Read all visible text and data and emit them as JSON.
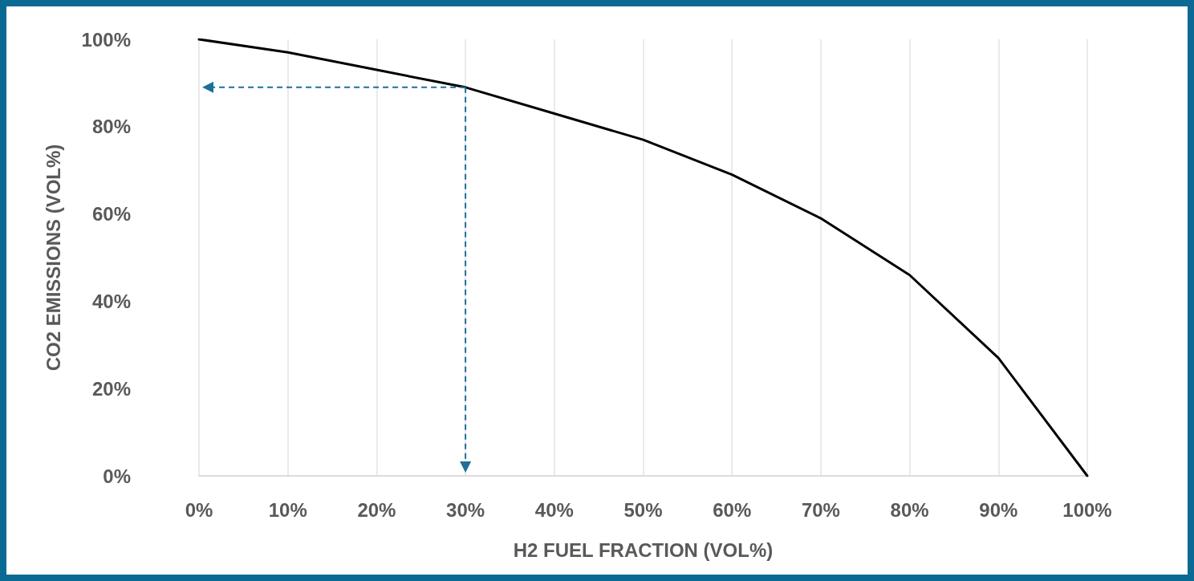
{
  "chart_data": {
    "type": "line",
    "xlabel": "H2 FUEL FRACTION (VOL%)",
    "ylabel": "CO2 EMISSIONS (VOL%)",
    "categories": [
      "0%",
      "10%",
      "20%",
      "30%",
      "40%",
      "50%",
      "60%",
      "70%",
      "80%",
      "90%",
      "100%"
    ],
    "series": [
      {
        "color": "#000000",
        "values": [
          100,
          97,
          93,
          89,
          83,
          77,
          69,
          59,
          46,
          27,
          0
        ]
      }
    ],
    "ylim": [
      0,
      100
    ],
    "yticks": [
      {
        "value": 0,
        "label": "0%"
      },
      {
        "value": 20,
        "label": "20%"
      },
      {
        "value": 40,
        "label": "40%"
      },
      {
        "value": 60,
        "label": "60%"
      },
      {
        "value": 80,
        "label": "80%"
      },
      {
        "value": 100,
        "label": "100%"
      }
    ],
    "ref_lines": [
      {
        "axis": "x",
        "value": "30%",
        "color": "#1f6f98",
        "line_style": "dashed"
      },
      {
        "axis": "y",
        "value": 89,
        "color": "#1f6f98",
        "line_style": "dashed"
      }
    ],
    "grid": "x",
    "marker": "none",
    "line_style": "solid"
  }
}
